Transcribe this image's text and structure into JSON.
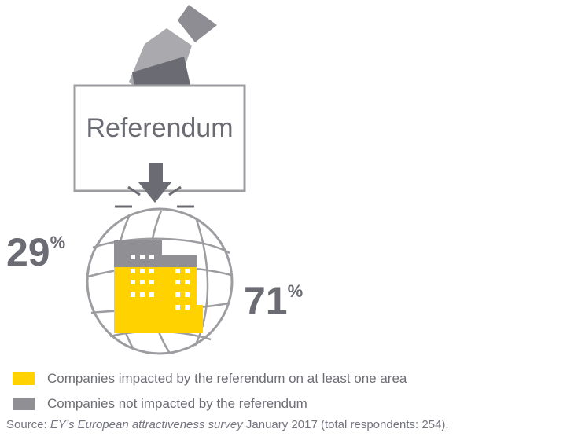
{
  "chart_data": {
    "type": "pictogram",
    "title": "Referendum",
    "series": [
      {
        "name": "Companies impacted by the referendum on at least one area",
        "value": 29,
        "color": "#ffd200"
      },
      {
        "name": "Companies not impacted by the referendum",
        "value": 71,
        "color": "#8f8f94"
      }
    ],
    "labels": {
      "impacted": {
        "number": "29",
        "symbol": "%"
      },
      "not_impacted": {
        "number": "71",
        "symbol": "%"
      }
    },
    "source": {
      "prefix": "Source: ",
      "survey": "EY’s European attractiveness survey",
      "suffix": " January 2017 (total respondents: 254)."
    }
  }
}
